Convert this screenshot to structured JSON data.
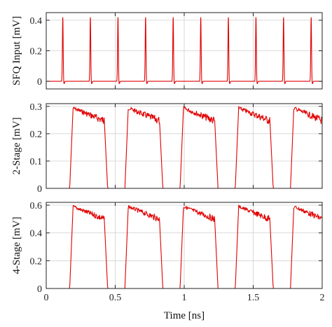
{
  "chart_data": [
    {
      "type": "line",
      "title": "",
      "xlabel": "",
      "ylabel": "SFQ Input [mV]",
      "xlim": [
        0,
        2
      ],
      "ylim": [
        -0.05,
        0.45
      ],
      "yticks": [
        0,
        0.2,
        0.4
      ],
      "ytick_labels": [
        "0",
        "0.2",
        "0.4"
      ],
      "grid": true,
      "waveform": "sfq_pulse_train",
      "pulse_times_ns": [
        0.12,
        0.32,
        0.52,
        0.72,
        0.92,
        1.12,
        1.32,
        1.52,
        1.72,
        1.92
      ],
      "pulse_peak_mV": 0.42,
      "baseline_mV": 0,
      "series": [
        {
          "color": "#e00000"
        }
      ]
    },
    {
      "type": "line",
      "title": "",
      "xlabel": "",
      "ylabel": "2-Stage [mV]",
      "xlim": [
        0,
        2
      ],
      "ylim": [
        0,
        0.31
      ],
      "yticks": [
        0,
        0.1,
        0.2,
        0.3
      ],
      "ytick_labels": [
        "0",
        "0.1",
        "0.2",
        "0.3"
      ],
      "grid": true,
      "waveform": "square_with_ripple",
      "high_intervals_ns": [
        [
          0.17,
          0.42
        ],
        [
          0.57,
          0.82
        ],
        [
          0.97,
          1.22
        ],
        [
          1.37,
          1.62
        ],
        [
          1.77,
          2.0
        ]
      ],
      "high_level_mV": 0.3,
      "ripple_mV": 0.03,
      "low_level_mV": 0,
      "series": [
        {
          "color": "#e00000"
        }
      ]
    },
    {
      "type": "line",
      "title": "",
      "xlabel": "Time [ns]",
      "ylabel": "4-Stage [mV]",
      "xlim": [
        0,
        2
      ],
      "ylim": [
        0,
        0.62
      ],
      "xticks": [
        0,
        0.5,
        1,
        1.5,
        2
      ],
      "xtick_labels": [
        "0",
        "0.5",
        "1",
        "1.5",
        "2"
      ],
      "yticks": [
        0,
        0.2,
        0.4,
        0.6
      ],
      "ytick_labels": [
        "0",
        "0.2",
        "0.4",
        "0.6"
      ],
      "grid": true,
      "waveform": "square_with_ripple",
      "high_intervals_ns": [
        [
          0.17,
          0.42
        ],
        [
          0.57,
          0.82
        ],
        [
          0.97,
          1.22
        ],
        [
          1.37,
          1.62
        ],
        [
          1.77,
          2.0
        ]
      ],
      "high_level_mV": 0.6,
      "ripple_mV": 0.05,
      "low_level_mV": 0,
      "series": [
        {
          "color": "#e00000"
        }
      ]
    }
  ]
}
